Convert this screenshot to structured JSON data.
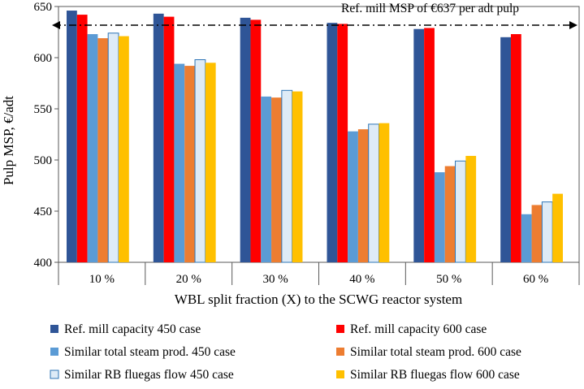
{
  "chart_data": {
    "type": "bar",
    "title": "",
    "xlabel": "WBL split fraction (X) to the SCWG reactor system",
    "ylabel": "Pulp MSP, €/adt",
    "ylim": [
      400,
      650
    ],
    "yticks": [
      400,
      450,
      500,
      550,
      600,
      650
    ],
    "categories": [
      "10 %",
      "20 %",
      "30 %",
      "40 %",
      "50 %",
      "60 %"
    ],
    "series": [
      {
        "name": "Ref. mill capacity 450 case",
        "color": "#2F5597",
        "stroke": "#2F5597",
        "values": [
          646,
          643,
          639,
          634,
          628,
          620
        ]
      },
      {
        "name": "Ref. mill capacity 600 case",
        "color": "#FF0000",
        "stroke": "#FF0000",
        "values": [
          642,
          640,
          637,
          633,
          629,
          623
        ]
      },
      {
        "name": "Similar total steam prod. 450 case",
        "color": "#5B9BD5",
        "stroke": "#5B9BD5",
        "values": [
          623,
          594,
          562,
          528,
          488,
          447
        ]
      },
      {
        "name": "Similar total steam prod. 600 case",
        "color": "#ED7D31",
        "stroke": "#ED7D31",
        "values": [
          619,
          592,
          561,
          530,
          494,
          456
        ]
      },
      {
        "name": "Similar RB fluegas flow 450 case",
        "color": "#DEEBF7",
        "stroke": "#2E75B6",
        "values": [
          624,
          598,
          568,
          535,
          499,
          459
        ]
      },
      {
        "name": "Similar RB fluegas flow 600 case",
        "color": "#FFC000",
        "stroke": "#FFC000",
        "values": [
          621,
          595,
          567,
          536,
          504,
          467
        ]
      }
    ],
    "reference_line": {
      "label": "Ref. mill MSP of €637 per adt pulp",
      "value": 637
    },
    "grid": false,
    "legend_position": "bottom"
  }
}
